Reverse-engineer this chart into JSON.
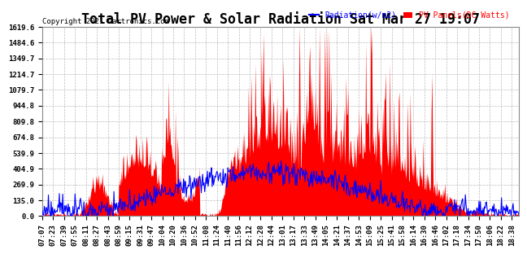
{
  "title": "Total PV Power & Solar Radiation Sat Mar 27 19:07",
  "copyright": "Copyright 2021 Cartronics.com",
  "legend_radiation": "Radiation(w/m2)",
  "legend_pv": "PV Panels(DC Watts)",
  "ylabel_values": [
    0.0,
    135.0,
    269.9,
    404.9,
    539.9,
    674.8,
    809.8,
    944.8,
    1079.7,
    1214.7,
    1349.7,
    1484.6,
    1619.6
  ],
  "ymax": 1619.6,
  "ymin": 0.0,
  "background_color": "#ffffff",
  "plot_bg_color": "#ffffff",
  "grid_color": "#bbbbbb",
  "radiation_color": "#0000ff",
  "pv_fill_color": "#ff0000",
  "pv_line_color": "#ff0000",
  "title_fontsize": 12,
  "tick_fontsize": 6.5,
  "n_points": 700
}
